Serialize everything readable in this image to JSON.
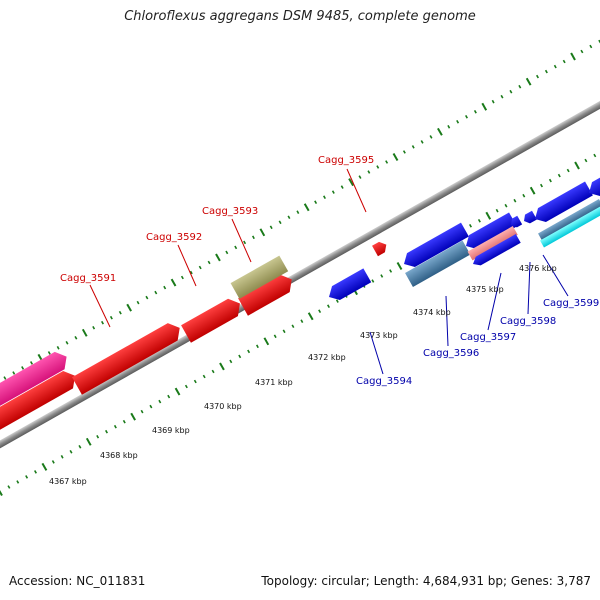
{
  "title": "Chloroflexus aggregans DSM 9485, complete genome",
  "footer": {
    "accession": "Accession: NC_011831",
    "stats": "Topology: circular; Length: 4,684,931 bp; Genes: 3,787"
  },
  "colors": {
    "label_forward": "#cc0000",
    "label_reverse": "#0000aa",
    "tick": "#1a7a1a",
    "backbone": "#8c8c8c"
  },
  "scale_labels": [
    {
      "text": "4367 kbp"
    },
    {
      "text": "4368 kbp"
    },
    {
      "text": "4369 kbp"
    },
    {
      "text": "4370 kbp"
    },
    {
      "text": "4371 kbp"
    },
    {
      "text": "4372 kbp"
    },
    {
      "text": "4373 kbp"
    },
    {
      "text": "4374 kbp"
    },
    {
      "text": "4375 kbp"
    },
    {
      "text": "4376 kbp"
    }
  ],
  "gene_labels": [
    {
      "text": "Cagg_3591",
      "strand": "forward"
    },
    {
      "text": "Cagg_3592",
      "strand": "forward"
    },
    {
      "text": "Cagg_3593",
      "strand": "forward"
    },
    {
      "text": "Cagg_3595",
      "strand": "forward"
    },
    {
      "text": "Cagg_3594",
      "strand": "reverse"
    },
    {
      "text": "Cagg_3596",
      "strand": "reverse"
    },
    {
      "text": "Cagg_3597",
      "strand": "reverse"
    },
    {
      "text": "Cagg_3598",
      "strand": "reverse"
    },
    {
      "text": "Cagg_3599",
      "strand": "reverse"
    }
  ]
}
